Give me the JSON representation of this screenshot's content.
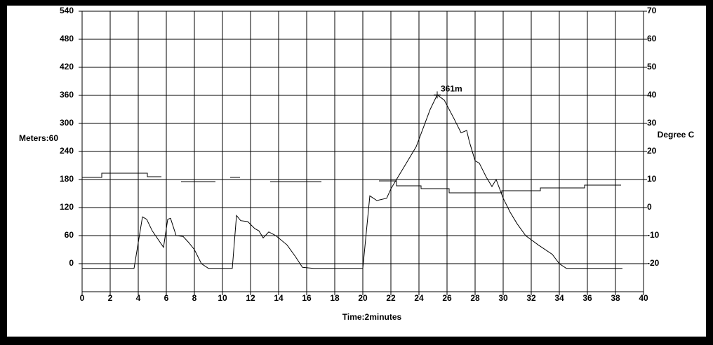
{
  "chart_data": {
    "type": "line",
    "y_label": "Meters:60",
    "y2_label": "Degree C",
    "x_label": "Time:2minutes",
    "xlim": [
      0,
      40
    ],
    "xticks": [
      0,
      2,
      4,
      6,
      8,
      10,
      12,
      14,
      16,
      18,
      20,
      22,
      24,
      26,
      28,
      30,
      32,
      34,
      36,
      38,
      40
    ],
    "ylim": [
      -60,
      540
    ],
    "yticks": [
      0,
      60,
      120,
      180,
      240,
      300,
      360,
      420,
      480,
      540
    ],
    "y2lim": [
      -30,
      70
    ],
    "y2ticks": [
      -20,
      -10,
      0,
      10,
      20,
      30,
      40,
      50,
      60,
      70
    ],
    "grid": true,
    "series": [
      {
        "color": "#000000",
        "x": [
          0,
          3.7,
          4.3,
          4.6,
          5,
          5.8,
          6.1,
          6.3,
          6.7,
          7.2,
          7.6,
          8,
          8.5,
          9,
          10.7,
          11,
          11.3,
          11.8,
          12.3,
          12.6,
          12.9,
          13.3,
          13.8,
          14.6,
          15.2,
          15.7,
          16.5,
          20,
          20.5,
          21,
          21.7,
          22,
          22.3,
          23,
          23.8,
          24.3,
          24.8,
          25.3,
          25.8,
          26.5,
          27,
          27.4,
          27.6,
          28,
          28.3,
          28.8,
          29.2,
          29.5,
          30,
          30.5,
          31,
          31.6,
          32.5,
          33.5,
          34,
          34.5,
          38.5
        ],
        "values": [
          -10,
          -10,
          100,
          95,
          70,
          35,
          95,
          97,
          60,
          58,
          45,
          30,
          0,
          -10,
          -10,
          103,
          92,
          90,
          75,
          70,
          55,
          68,
          60,
          40,
          15,
          -8,
          -10,
          -10,
          145,
          135,
          140,
          160,
          175,
          210,
          250,
          290,
          330,
          361,
          350,
          310,
          280,
          285,
          260,
          220,
          215,
          185,
          165,
          180,
          140,
          110,
          85,
          60,
          40,
          20,
          0,
          -10,
          -10
        ]
      },
      {
        "color": "#000000",
        "axis": "y2",
        "x": [
          0,
          1.4,
          1.4,
          4.65,
          4.65,
          5.65,
          null,
          7.05,
          9.5,
          null,
          10.55,
          11.25,
          null,
          13.4,
          17.05,
          null,
          21.15,
          22.4,
          22.4,
          24.15,
          24.15,
          26.15,
          26.15,
          29.9,
          29.9,
          32.65,
          32.65,
          35.8,
          35.8,
          38.4
        ],
        "values": [
          10.75,
          10.75,
          12.25,
          12.25,
          11,
          11,
          null,
          9.25,
          9.25,
          null,
          10.75,
          10.75,
          null,
          9.25,
          9.25,
          null,
          9.5,
          9.5,
          7.75,
          7.75,
          6.75,
          6.75,
          5.25,
          5.25,
          6,
          6,
          7,
          7,
          8,
          8
        ]
      }
    ],
    "annotation": {
      "text": "361m",
      "x": 25.3,
      "y": 361
    }
  }
}
